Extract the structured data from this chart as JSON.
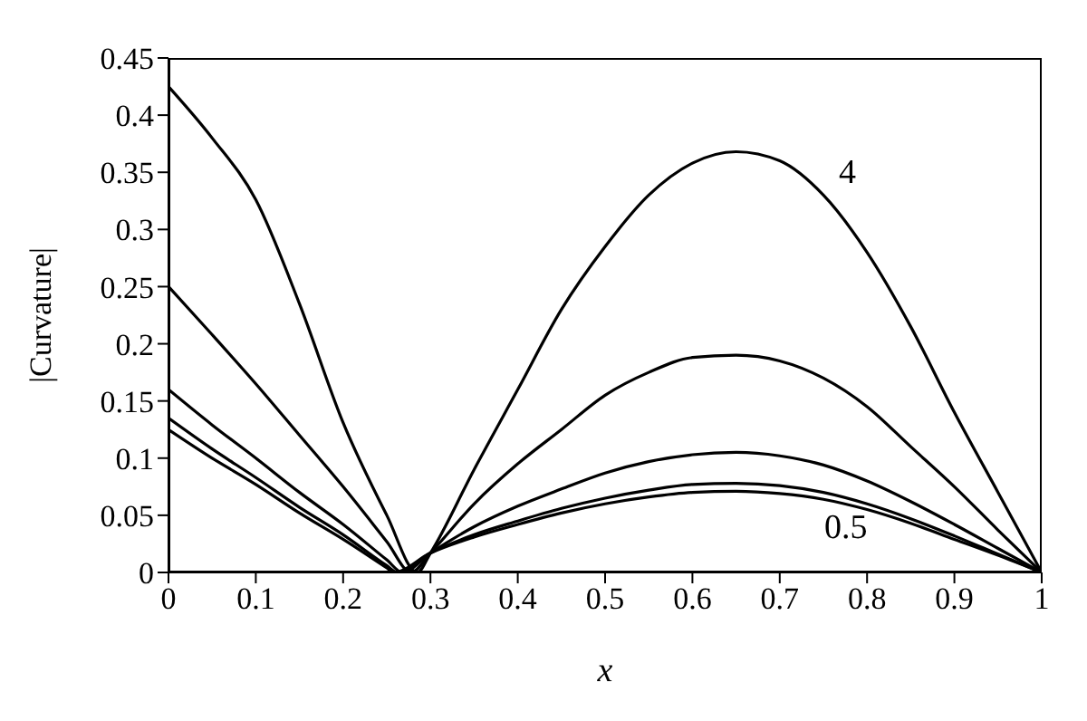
{
  "chart_data": {
    "type": "line",
    "xlabel": "x",
    "ylabel": "|Curvature|",
    "xlim": [
      0,
      1
    ],
    "ylim": [
      0,
      0.45
    ],
    "xticks": [
      0,
      0.1,
      0.2,
      0.3,
      0.4,
      0.5,
      0.6,
      0.7,
      0.8,
      0.9,
      1
    ],
    "yticks": [
      0,
      0.05,
      0.1,
      0.15,
      0.2,
      0.25,
      0.3,
      0.35,
      0.4,
      0.45
    ],
    "grid": false,
    "marker": "none",
    "line_style": "solid",
    "annotations": [
      "4",
      "0.5"
    ],
    "series": [
      {
        "color": "#000000",
        "x": [
          0,
          0.05,
          0.1,
          0.15,
          0.2,
          0.25,
          0.285,
          0.3,
          0.35,
          0.4,
          0.45,
          0.5,
          0.55,
          0.6,
          0.65,
          0.7,
          0.75,
          0.8,
          0.85,
          0.9,
          0.95,
          1
        ],
        "values": [
          0.425,
          0.38,
          0.326,
          0.235,
          0.131,
          0.05,
          0,
          0.017,
          0.09,
          0.16,
          0.23,
          0.285,
          0.33,
          0.358,
          0.368,
          0.36,
          0.33,
          0.28,
          0.215,
          0.14,
          0.07,
          0
        ]
      },
      {
        "color": "#000000",
        "x": [
          0,
          0.05,
          0.1,
          0.15,
          0.2,
          0.25,
          0.278,
          0.3,
          0.35,
          0.4,
          0.45,
          0.5,
          0.55,
          0.6,
          0.65,
          0.7,
          0.75,
          0.8,
          0.85,
          0.9,
          0.95,
          1
        ],
        "values": [
          0.25,
          0.208,
          0.165,
          0.12,
          0.075,
          0.027,
          0,
          0.017,
          0.06,
          0.095,
          0.125,
          0.155,
          0.175,
          0.188,
          0.19,
          0.185,
          0.17,
          0.145,
          0.11,
          0.075,
          0.037,
          0
        ]
      },
      {
        "color": "#000000",
        "x": [
          0,
          0.05,
          0.1,
          0.15,
          0.2,
          0.25,
          0.268,
          0.3,
          0.35,
          0.4,
          0.45,
          0.5,
          0.55,
          0.6,
          0.65,
          0.7,
          0.75,
          0.8,
          0.85,
          0.9,
          0.95,
          1
        ],
        "values": [
          0.16,
          0.129,
          0.1,
          0.07,
          0.042,
          0.011,
          0,
          0.017,
          0.04,
          0.058,
          0.073,
          0.087,
          0.097,
          0.103,
          0.105,
          0.102,
          0.094,
          0.08,
          0.062,
          0.042,
          0.021,
          0
        ]
      },
      {
        "color": "#000000",
        "x": [
          0,
          0.05,
          0.1,
          0.15,
          0.2,
          0.25,
          0.262,
          0.3,
          0.35,
          0.4,
          0.45,
          0.5,
          0.55,
          0.6,
          0.65,
          0.7,
          0.75,
          0.8,
          0.85,
          0.9,
          0.95,
          1
        ],
        "values": [
          0.135,
          0.108,
          0.083,
          0.057,
          0.033,
          0.006,
          0,
          0.017,
          0.033,
          0.045,
          0.056,
          0.065,
          0.072,
          0.077,
          0.078,
          0.076,
          0.07,
          0.06,
          0.047,
          0.032,
          0.016,
          0
        ]
      },
      {
        "color": "#000000",
        "x": [
          0,
          0.05,
          0.1,
          0.15,
          0.2,
          0.25,
          0.258,
          0.3,
          0.35,
          0.4,
          0.45,
          0.5,
          0.55,
          0.6,
          0.65,
          0.7,
          0.75,
          0.8,
          0.85,
          0.9,
          0.95,
          1
        ],
        "values": [
          0.125,
          0.1,
          0.077,
          0.052,
          0.029,
          0.004,
          0,
          0.017,
          0.031,
          0.042,
          0.052,
          0.06,
          0.066,
          0.07,
          0.071,
          0.069,
          0.064,
          0.055,
          0.043,
          0.029,
          0.015,
          0
        ]
      }
    ]
  }
}
